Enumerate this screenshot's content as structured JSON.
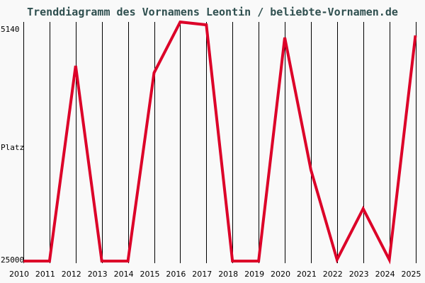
{
  "chart_data": {
    "type": "line",
    "title": "Trenddiagramm des Vornamens Leontin / beliebte-Vornamen.de",
    "xlabel": "",
    "ylabel": "Platz",
    "y_tick_labels": [
      "5140",
      "25000"
    ],
    "ylim": [
      25000,
      5140
    ],
    "y_inverted": true,
    "grid": "vertical lines at each year",
    "categories": [
      "2010",
      "2011",
      "2012",
      "2013",
      "2014",
      "2015",
      "2016",
      "2017",
      "2018",
      "2019",
      "2020",
      "2021",
      "2022",
      "2023",
      "2024",
      "2025"
    ],
    "series": [
      {
        "name": "Leontin",
        "color": "#dc0028",
        "values": [
          25000,
          25000,
          8290,
          25000,
          25000,
          8890,
          4540,
          4780,
          25000,
          25000,
          5870,
          17190,
          24880,
          20520,
          24880,
          5690
        ]
      }
    ]
  },
  "labels": {
    "title": "Trenddiagramm des Vornamens Leontin / beliebte-Vornamen.de",
    "y_top": "5140",
    "y_mid": "Platz",
    "y_bottom": "25000",
    "years": [
      "2010",
      "2011",
      "2012",
      "2013",
      "2014",
      "2015",
      "2016",
      "2017",
      "2018",
      "2019",
      "2020",
      "2021",
      "2022",
      "2023",
      "2024",
      "2025"
    ]
  }
}
